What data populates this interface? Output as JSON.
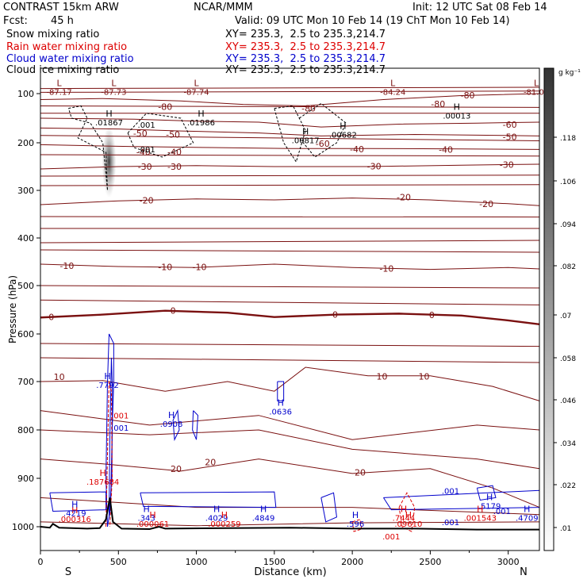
{
  "header": {
    "model": "CONTRAST 15km ARW",
    "source": "NCAR/MMM",
    "init": "Init: 12 UTC Sat 08 Feb 14",
    "fcst_label": "Fcst:",
    "fcst_value": "45 h",
    "valid": "Valid: 09 UTC Mon 10 Feb 14 (19 ChT Mon 10 Feb 14)",
    "fields": [
      {
        "name": "Snow mixing ratio",
        "xy": "XY= 235.3,  2.5 to 235.3,214.7",
        "color": "#000000"
      },
      {
        "name": "Rain water mixing ratio",
        "xy": "XY= 235.3,  2.5 to 235.3,214.7",
        "color": "#dd0000"
      },
      {
        "name": "Cloud water mixing ratio",
        "xy": "XY= 235.3,  2.5 to 235.3,214.7",
        "color": "#0000cc"
      },
      {
        "name": "Cloud ice mixing ratio",
        "xy": "XY= 235.3,  2.5 to 235.3,214.7",
        "color": "#000000"
      }
    ]
  },
  "chart_data": {
    "type": "cross-section",
    "xlabel": "Distance (km)",
    "ylabel": "Pressure (hPa)",
    "xlim": [
      0,
      3200
    ],
    "ylim": [
      1050,
      60
    ],
    "x_ticks": [
      0,
      500,
      1000,
      1500,
      2000,
      2500,
      3000
    ],
    "y_ticks": [
      100,
      200,
      300,
      400,
      500,
      600,
      700,
      800,
      900,
      1000
    ],
    "x_end_labels": {
      "left": "S",
      "right": "N"
    },
    "colorbar": {
      "unit": "g kg⁻¹",
      "ticks": [
        0.01,
        0.022,
        0.034,
        0.046,
        0.058,
        0.07,
        0.082,
        0.094,
        0.106,
        0.118
      ],
      "tick_labels": [
        ".01",
        ".022",
        ".034",
        ".046",
        ".058",
        ".07",
        ".082",
        ".094",
        ".106",
        ".118"
      ]
    },
    "temperature_isotherms": [
      {
        "label": "-80",
        "level": -80
      },
      {
        "label": "-60",
        "level": -60
      },
      {
        "label": "-50",
        "level": -50
      },
      {
        "label": "-40",
        "level": -40
      },
      {
        "label": "-30",
        "level": -30
      },
      {
        "label": "-20",
        "level": -20
      },
      {
        "label": "-10",
        "level": -10
      },
      {
        "label": "0",
        "level": 0
      },
      {
        "label": "10",
        "level": 10
      },
      {
        "label": "20",
        "level": 20
      }
    ],
    "isotherm_labels": [
      {
        "text": "-80",
        "x": 2740,
        "p": 103
      },
      {
        "text": "-80",
        "x": 2550,
        "p": 121
      },
      {
        "text": "-80",
        "x": 1720,
        "p": 130
      },
      {
        "text": "-80",
        "x": 800,
        "p": 127
      },
      {
        "text": "-60",
        "x": 3010,
        "p": 163
      },
      {
        "text": "-60",
        "x": 1810,
        "p": 202
      },
      {
        "text": "-50",
        "x": 3010,
        "p": 188
      },
      {
        "text": "-50",
        "x": 850,
        "p": 183
      },
      {
        "text": "-50",
        "x": 640,
        "p": 181
      },
      {
        "text": "-40",
        "x": 2600,
        "p": 214
      },
      {
        "text": "-40",
        "x": 2030,
        "p": 213
      },
      {
        "text": "-40",
        "x": 860,
        "p": 219
      },
      {
        "text": "-40",
        "x": 660,
        "p": 219
      },
      {
        "text": "-30",
        "x": 2990,
        "p": 246
      },
      {
        "text": "-30",
        "x": 2140,
        "p": 249
      },
      {
        "text": "-30",
        "x": 860,
        "p": 250
      },
      {
        "text": "-30",
        "x": 670,
        "p": 250
      },
      {
        "text": "-20",
        "x": 2860,
        "p": 328
      },
      {
        "text": "-20",
        "x": 2330,
        "p": 314
      },
      {
        "text": "-20",
        "x": 680,
        "p": 321
      },
      {
        "text": "-10",
        "x": 2220,
        "p": 464
      },
      {
        "text": "-10",
        "x": 1020,
        "p": 461
      },
      {
        "text": "-10",
        "x": 800,
        "p": 461
      },
      {
        "text": "-10",
        "x": 170,
        "p": 458
      },
      {
        "text": "0",
        "x": 2510,
        "p": 561
      },
      {
        "text": "0",
        "x": 1890,
        "p": 560
      },
      {
        "text": "0",
        "x": 850,
        "p": 552
      },
      {
        "text": "0",
        "x": 70,
        "p": 565
      },
      {
        "text": "10",
        "x": 2460,
        "p": 689
      },
      {
        "text": "10",
        "x": 2190,
        "p": 689
      },
      {
        "text": "10",
        "x": 120,
        "p": 690
      },
      {
        "text": "20",
        "x": 2050,
        "p": 888
      },
      {
        "text": "20",
        "x": 1090,
        "p": 866
      },
      {
        "text": "20",
        "x": 870,
        "p": 880
      }
    ],
    "extrema": [
      {
        "mark": "L",
        "value": "-87.17",
        "x": 120,
        "p": 88,
        "color": "#7a1010"
      },
      {
        "mark": "L",
        "value": "-87.73",
        "x": 470,
        "p": 88,
        "color": "#7a1010"
      },
      {
        "mark": "L",
        "value": "-87.74",
        "x": 1000,
        "p": 88,
        "color": "#7a1010"
      },
      {
        "mark": "L",
        "value": "-84.24",
        "x": 2260,
        "p": 88,
        "color": "#7a1010"
      },
      {
        "mark": "L",
        "value": "-81.02",
        "x": 3180,
        "p": 88,
        "color": "#7a1010"
      },
      {
        "mark": "H",
        "value": ".01867",
        "x": 440,
        "p": 147,
        "color": "#000000"
      },
      {
        "mark": "H",
        "value": ".01986",
        "x": 1030,
        "p": 147,
        "color": "#000000"
      },
      {
        "mark": "H",
        "value": ".00013",
        "x": 2670,
        "p": 133,
        "color": "#000000"
      },
      {
        "mark": "H",
        "value": ".00682",
        "x": 1940,
        "p": 172,
        "color": "#000000"
      },
      {
        "mark": "H",
        "value": ".00817",
        "x": 1700,
        "p": 183,
        "color": "#000000"
      },
      {
        "mark": "H",
        "value": ".7792",
        "x": 430,
        "p": 695,
        "color": "#0000cc"
      },
      {
        "mark": "H",
        "value": ".0908",
        "x": 840,
        "p": 775,
        "color": "#0000cc"
      },
      {
        "mark": "H",
        "value": ".0636",
        "x": 1540,
        "p": 750,
        "color": "#0000cc"
      },
      {
        "mark": "H",
        "value": ".187684",
        "x": 400,
        "p": 895,
        "color": "#dd0000"
      },
      {
        "mark": "H",
        "value": ".000316",
        "x": 220,
        "p": 972,
        "color": "#dd0000"
      },
      {
        "mark": "H",
        "value": ".343",
        "x": 680,
        "p": 970,
        "color": "#0000cc"
      },
      {
        "mark": "H",
        "value": ".000061",
        "x": 720,
        "p": 982,
        "color": "#dd0000"
      },
      {
        "mark": "H",
        "value": ".4029",
        "x": 1130,
        "p": 970,
        "color": "#0000cc"
      },
      {
        "mark": "H",
        "value": ".000259",
        "x": 1180,
        "p": 982,
        "color": "#dd0000"
      },
      {
        "mark": "H",
        "value": ".4849",
        "x": 1430,
        "p": 970,
        "color": "#0000cc"
      },
      {
        "mark": "H",
        "value": ".4219",
        "x": 220,
        "p": 960,
        "color": "#0000cc"
      },
      {
        "mark": "H",
        "value": ".596",
        "x": 2020,
        "p": 982,
        "color": "#0000cc"
      },
      {
        "mark": "H",
        "value": ".7444",
        "x": 2330,
        "p": 970,
        "color": "#dd0000"
      },
      {
        "mark": "H",
        "value": ".09610",
        "x": 2360,
        "p": 982,
        "color": "#dd0000"
      },
      {
        "mark": "H",
        "value": ".5179",
        "x": 2880,
        "p": 945,
        "color": "#0000cc"
      },
      {
        "mark": "H",
        "value": ".001543",
        "x": 2820,
        "p": 970,
        "color": "#dd0000"
      },
      {
        "mark": "H",
        "value": ".4709",
        "x": 3120,
        "p": 970,
        "color": "#0000cc"
      }
    ],
    "small_labels": [
      {
        "text": ".001",
        "x": 680,
        "p": 163,
        "color": "#000000"
      },
      {
        "text": ".001",
        "x": 680,
        "p": 213,
        "color": "#000000"
      },
      {
        "text": ".001",
        "x": 510,
        "p": 795,
        "color": "#0000cc"
      },
      {
        "text": ".001",
        "x": 510,
        "p": 770,
        "color": "#dd0000"
      },
      {
        "text": ".001",
        "x": 2630,
        "p": 925,
        "color": "#0000cc"
      },
      {
        "text": ".001",
        "x": 2630,
        "p": 990,
        "color": "#0000cc"
      },
      {
        "text": ".001",
        "x": 2250,
        "p": 1020,
        "color": "#dd0000"
      },
      {
        "text": ".001",
        "x": 2960,
        "p": 967,
        "color": "#0000cc"
      }
    ]
  }
}
